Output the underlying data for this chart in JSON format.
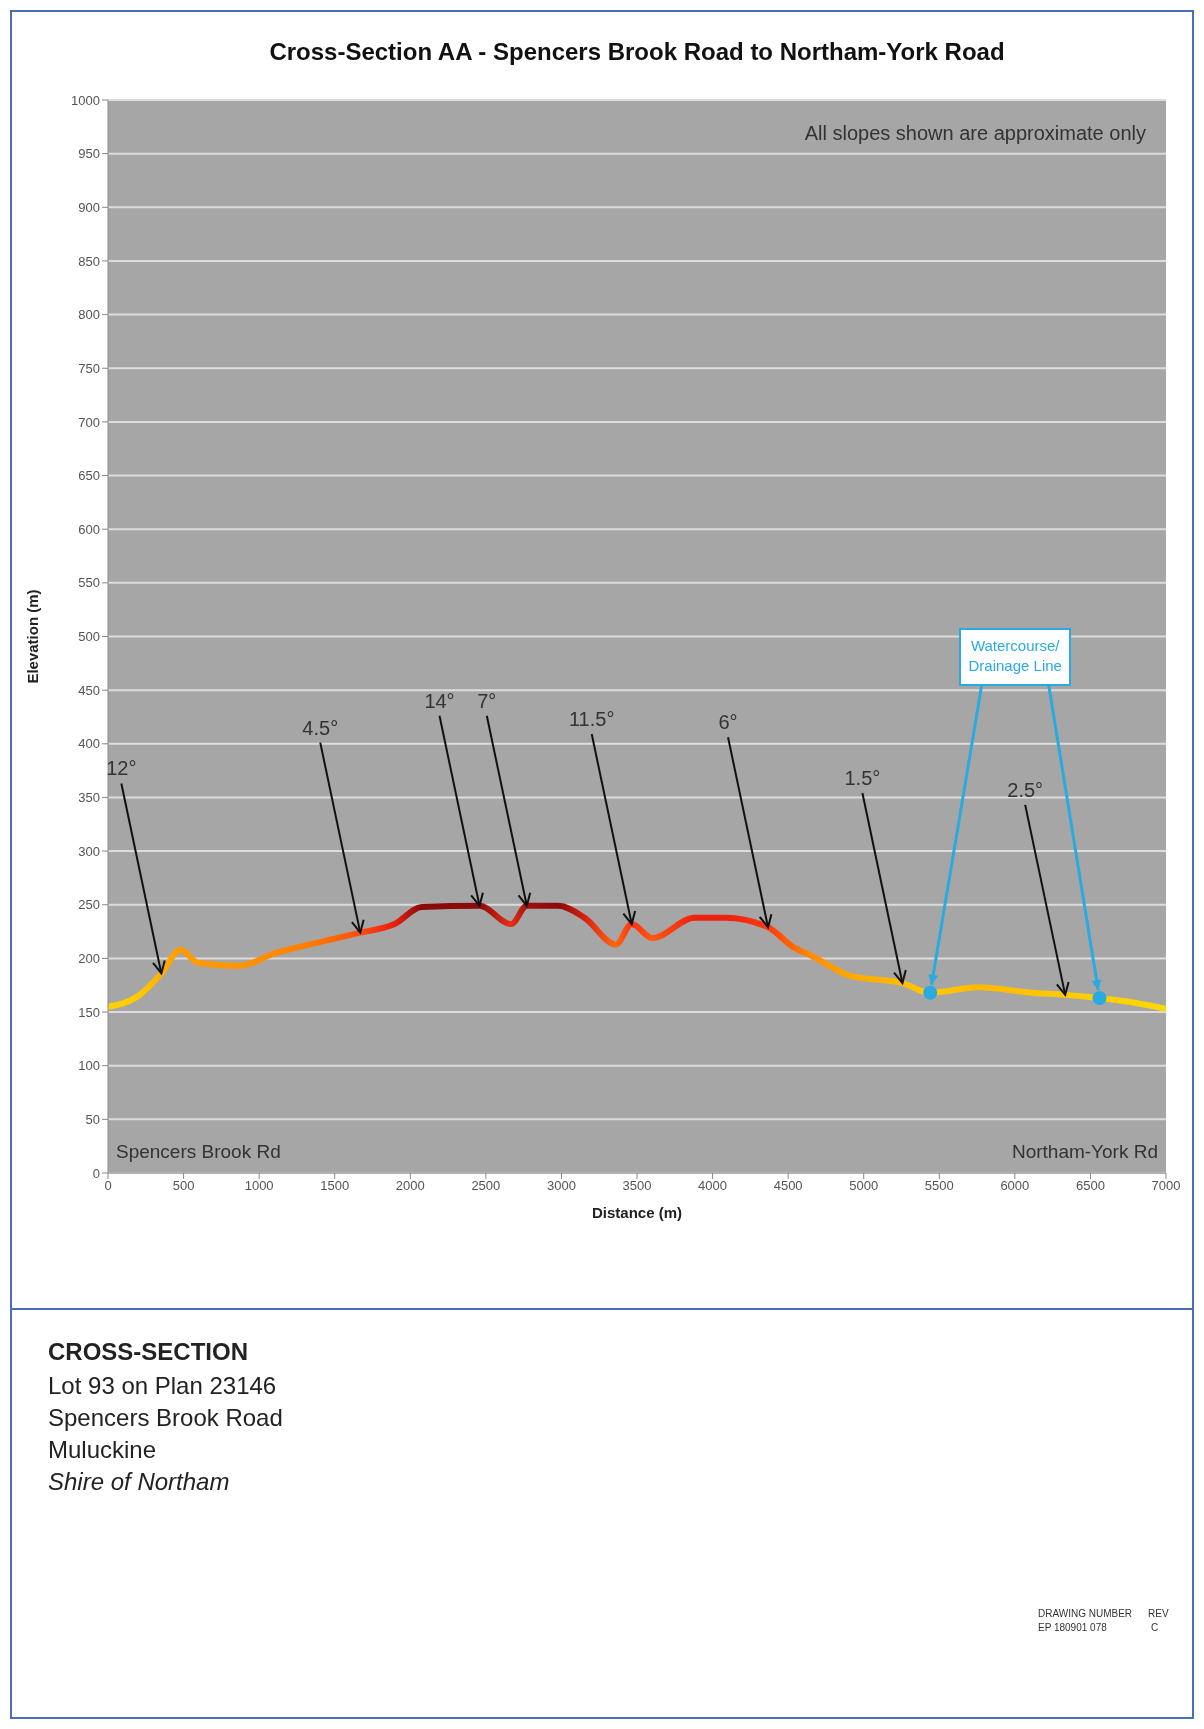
{
  "chart_data": {
    "type": "line",
    "title": "Cross-Section AA - Spencers Brook Road to Northam-York Road",
    "xlabel": "Distance (m)",
    "ylabel": "Elevation (m)",
    "xlim": [
      0,
      7000
    ],
    "xticks": [
      0,
      500,
      1000,
      1500,
      2000,
      2500,
      3000,
      3500,
      4000,
      4500,
      5000,
      5500,
      6000,
      6500,
      7000
    ],
    "ylim": [
      0,
      1000
    ],
    "yticks": [
      0,
      50,
      100,
      150,
      200,
      250,
      300,
      350,
      400,
      450,
      500,
      550,
      600,
      650,
      700,
      750,
      800,
      850,
      900,
      950,
      1000
    ],
    "grid": "y",
    "legend": false,
    "line_style": "solid",
    "series": [
      {
        "marker": "none",
        "x": [
          0,
          200,
          353,
          480,
          594,
          866,
          1108,
          1365,
          1669,
          1896,
          2075,
          2458,
          2667,
          2771,
          2977,
          3152,
          3360,
          3465,
          3602,
          3880,
          4088,
          4367,
          4540,
          4648,
          4907,
          5256,
          5439,
          5760,
          6108,
          6333,
          6558,
          6819,
          7000
        ],
        "values": [
          155,
          165,
          186,
          208,
          196,
          193,
          205,
          214,
          224,
          232,
          248,
          249,
          232,
          249,
          249,
          238,
          213,
          232,
          219,
          238,
          238,
          229,
          210,
          203,
          184,
          177,
          168,
          173,
          168,
          166,
          163,
          158,
          153
        ],
        "colors": [
          "#ffd200",
          "#ffcc00",
          "#ffb000",
          "#ff9a00",
          "#ff9a00",
          "#ff9400",
          "#ff8a00",
          "#ff7800",
          "#ff4c10",
          "#e82010",
          "#8b0a0a",
          "#8b0a0a",
          "#e8301a",
          "#a01010",
          "#8b0a0a",
          "#d82010",
          "#ff6a10",
          "#ff3010",
          "#ff5a10",
          "#ee2010",
          "#ee2010",
          "#ff3a10",
          "#ff6a00",
          "#ff8c00",
          "#ffa800",
          "#ffbc00",
          "#ffcc00",
          "#ffb800",
          "#ffc400",
          "#ffcc00",
          "#ffd000",
          "#ffd400",
          "#ffd800"
        ]
      },
      {
        "type": "scatter",
        "marker": "circle",
        "color": "#29abe2",
        "x": [
          5440,
          6560
        ],
        "values": [
          168,
          163
        ]
      }
    ],
    "annotations": [
      "All slopes shown are approximate only",
      "Spencers Brook Rd",
      "Northam-York Rd",
      {
        "text": "Watercourse/ Drainage Line",
        "x": 5440,
        "y": 168
      },
      {
        "text": "12°",
        "x": 353,
        "y": 186
      },
      {
        "text": "4.5°",
        "x": 1669,
        "y": 224
      },
      {
        "text": "14°",
        "x": 2458,
        "y": 249
      },
      {
        "text": "7°",
        "x": 2771,
        "y": 249
      },
      {
        "text": "11.5°",
        "x": 3465,
        "y": 232
      },
      {
        "text": "6°",
        "x": 4367,
        "y": 229
      },
      {
        "text": "1.5°",
        "x": 5256,
        "y": 177
      },
      {
        "text": "2.5°",
        "x": 6333,
        "y": 166
      },
      "CROSS-SECTION",
      "Lot 93 on Plan 23146",
      "Spencers Brook Road",
      "Muluckine",
      "Shire of Northam",
      "DRAWING NUMBER",
      "EP 180901 078",
      "REV",
      "C"
    ]
  }
}
